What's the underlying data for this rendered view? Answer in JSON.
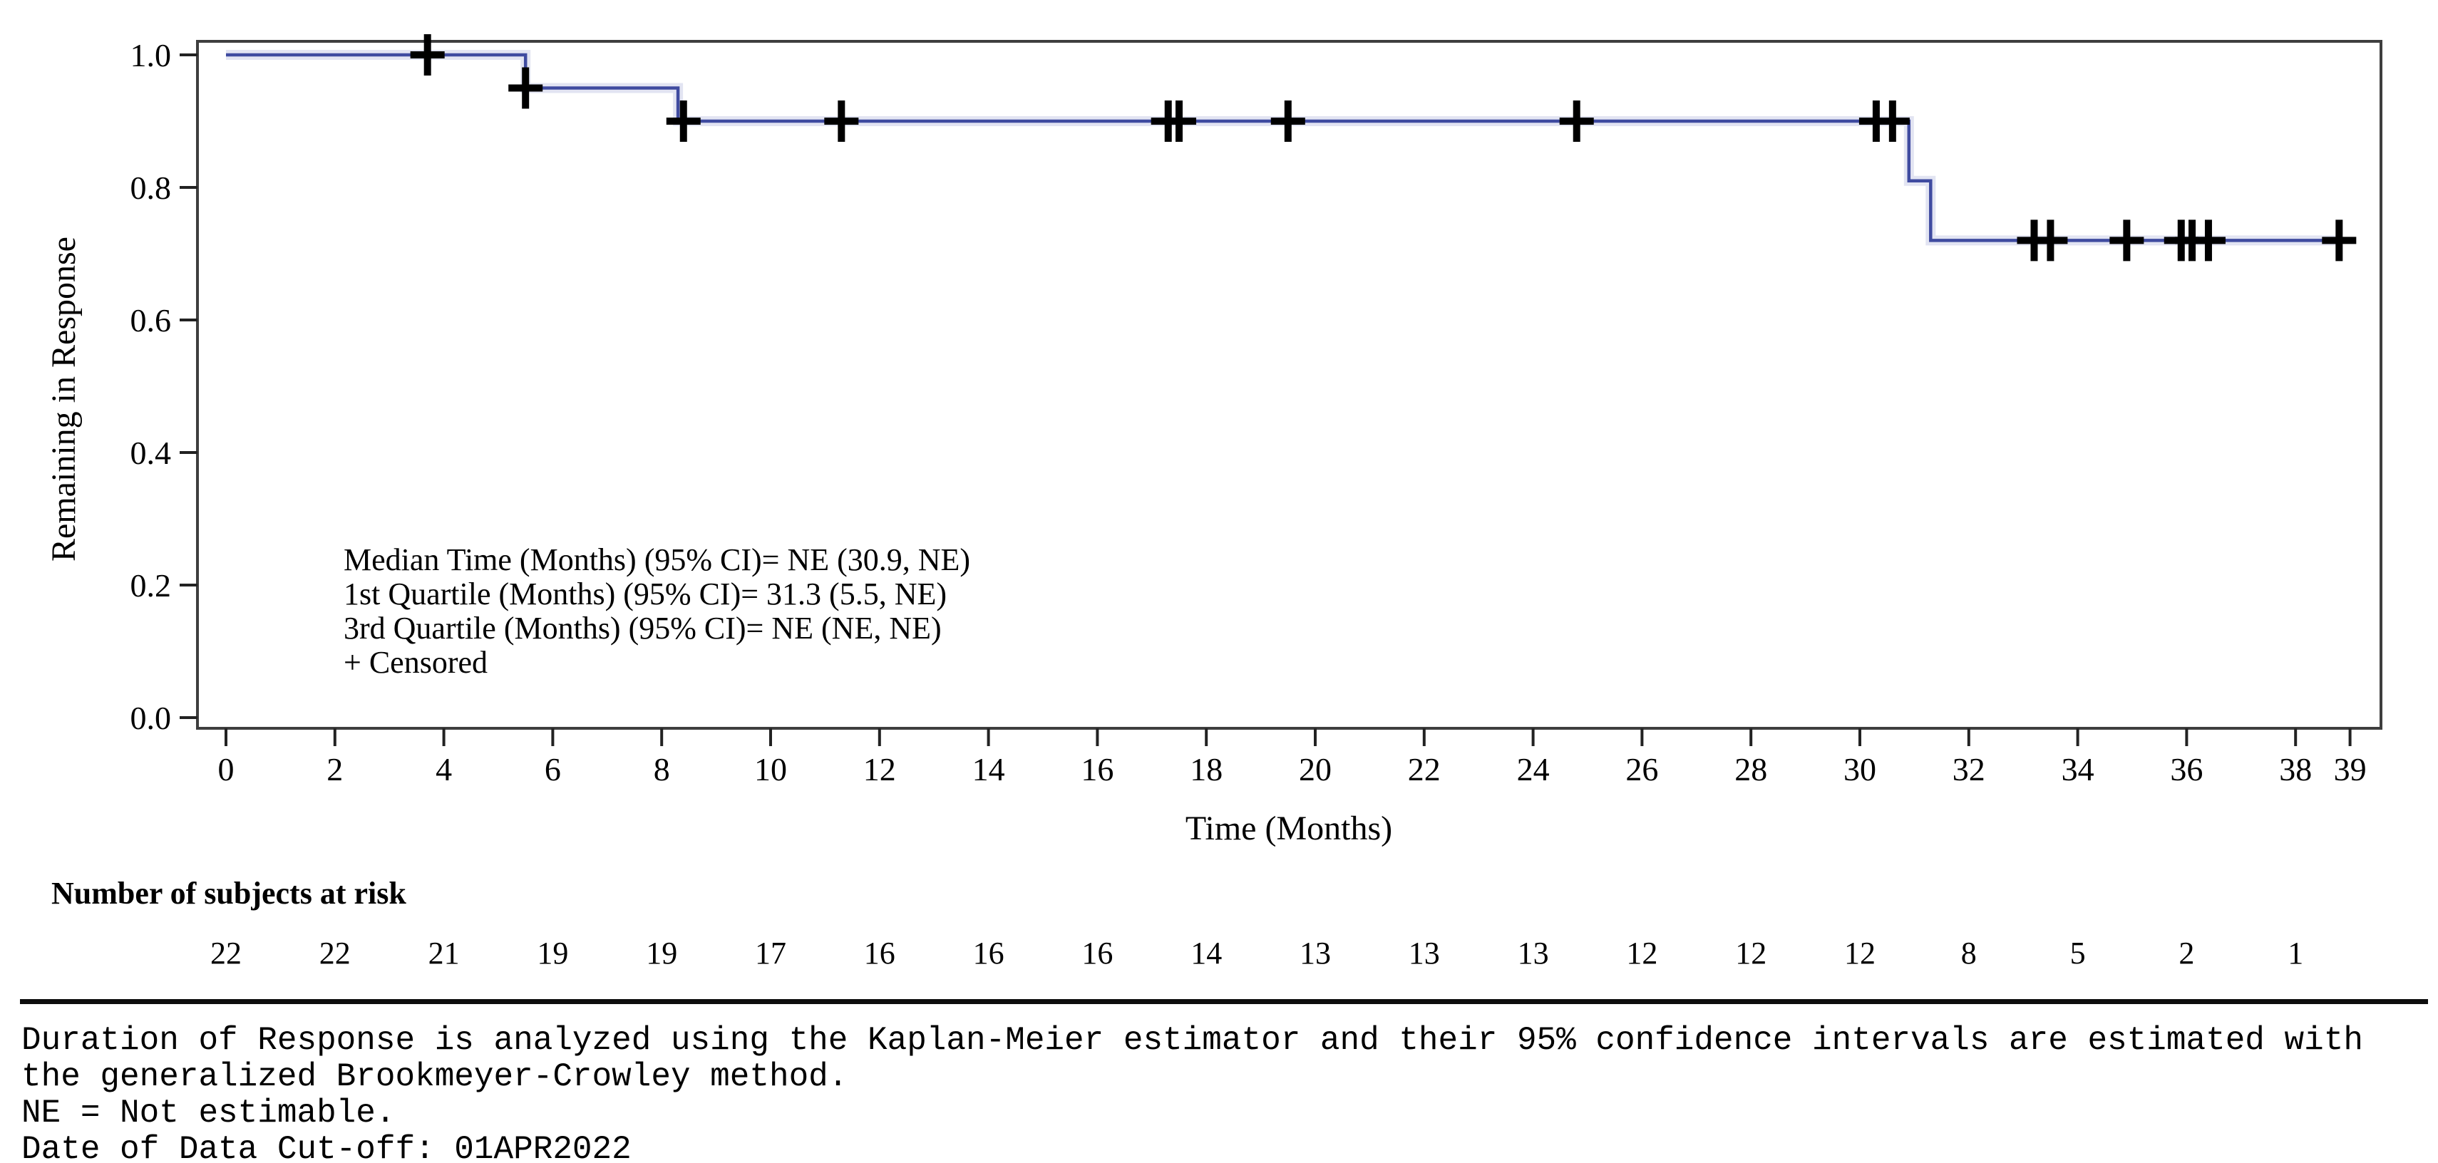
{
  "chart_data": {
    "type": "line",
    "subtype": "kaplan-meier-step",
    "title": "",
    "xlabel": "Time (Months)",
    "ylabel": "Remaining in Response",
    "xlim": [
      0,
      39
    ],
    "ylim": [
      0.0,
      1.0
    ],
    "grid": false,
    "legend_position": "none",
    "x_ticks": [
      0,
      2,
      4,
      6,
      8,
      10,
      12,
      14,
      16,
      18,
      20,
      22,
      24,
      26,
      28,
      30,
      32,
      34,
      36,
      38,
      39
    ],
    "y_ticks": [
      0.0,
      0.2,
      0.4,
      0.6,
      0.8,
      1.0
    ],
    "series": [
      {
        "name": "Duration of Response KM estimate",
        "color": "#3f4ba0",
        "points": [
          [
            0,
            1.0
          ],
          [
            5.5,
            1.0
          ],
          [
            5.5,
            0.95
          ],
          [
            8.3,
            0.95
          ],
          [
            8.3,
            0.9
          ],
          [
            30.9,
            0.9
          ],
          [
            30.9,
            0.81
          ],
          [
            31.3,
            0.81
          ],
          [
            31.3,
            0.72
          ],
          [
            38.8,
            0.72
          ]
        ]
      }
    ],
    "censored_marker": "+",
    "censored_color": "#000000",
    "censored_points": [
      [
        3.7,
        1.0
      ],
      [
        5.5,
        0.95
      ],
      [
        8.4,
        0.9
      ],
      [
        11.3,
        0.9
      ],
      [
        17.3,
        0.9
      ],
      [
        17.5,
        0.9
      ],
      [
        19.5,
        0.9
      ],
      [
        24.8,
        0.9
      ],
      [
        30.3,
        0.9
      ],
      [
        30.6,
        0.9
      ],
      [
        33.2,
        0.72
      ],
      [
        33.5,
        0.72
      ],
      [
        34.9,
        0.72
      ],
      [
        35.9,
        0.72
      ],
      [
        36.1,
        0.72
      ],
      [
        36.4,
        0.72
      ],
      [
        38.8,
        0.72
      ]
    ],
    "annotation_lines": [
      "Median Time (Months) (95% CI)= NE (30.9, NE)",
      "1st Quartile (Months) (95% CI)= 31.3 (5.5, NE)",
      "3rd Quartile (Months) (95% CI)= NE (NE, NE)",
      "+ Censored"
    ]
  },
  "at_risk": {
    "header": "Number of subjects at risk",
    "times": [
      0,
      2,
      4,
      6,
      8,
      10,
      12,
      14,
      16,
      18,
      20,
      22,
      24,
      26,
      28,
      30,
      32,
      34,
      36,
      38
    ],
    "counts": [
      22,
      22,
      21,
      19,
      19,
      17,
      16,
      16,
      16,
      14,
      13,
      13,
      13,
      12,
      12,
      12,
      8,
      5,
      2,
      1
    ]
  },
  "footnotes": {
    "lines": [
      "Duration of Response is analyzed using the Kaplan-Meier estimator and their 95% confidence intervals are estimated with",
      "the generalized Brookmeyer-Crowley method.",
      "NE = Not estimable.",
      "Date of Data Cut-off: 01APR2022"
    ]
  }
}
